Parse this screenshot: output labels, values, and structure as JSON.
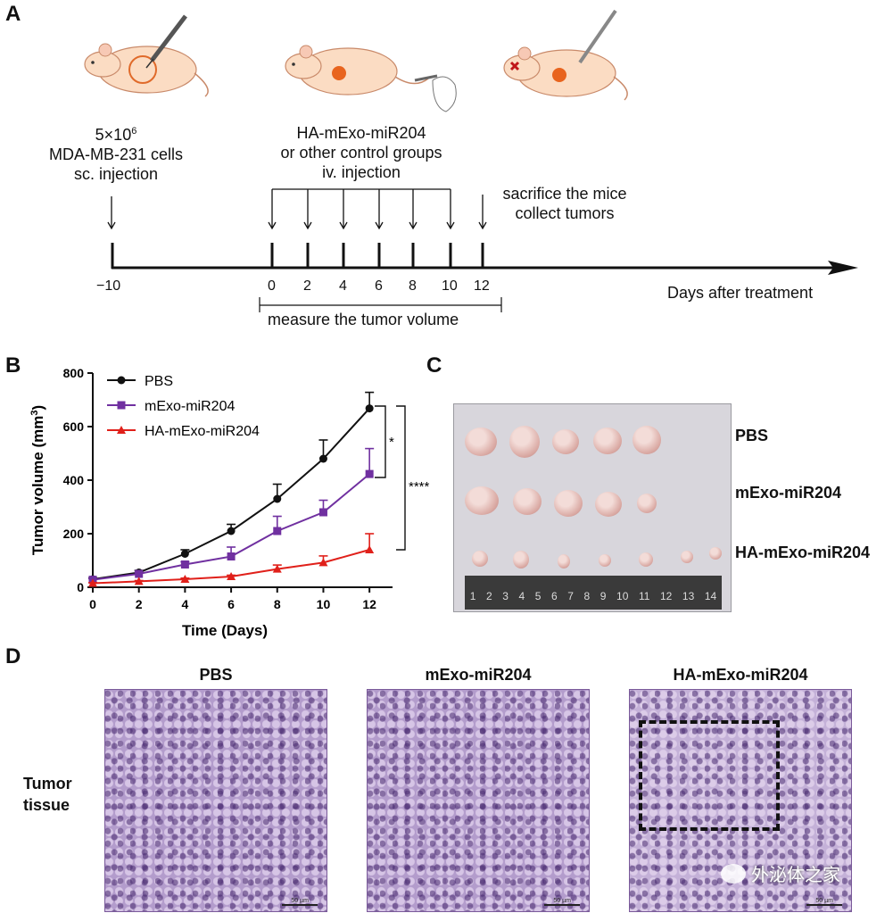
{
  "panels": {
    "a": "A",
    "b": "B",
    "c": "C",
    "d": "D"
  },
  "panel_a": {
    "cells_line1_base": "5×10",
    "cells_line1_sup": "6",
    "cells_line2": "MDA-MB-231 cells",
    "cells_line3": "sc. injection",
    "treat_line1": "HA-mExo-miR204",
    "treat_line2": "or other control groups",
    "treat_line3": "iv. injection",
    "sacrifice_line1": "sacrifice the mice",
    "sacrifice_line2": "collect tumors",
    "ticks": [
      "−10",
      "0",
      "2",
      "4",
      "6",
      "8",
      "10",
      "12"
    ],
    "axis_label": "Days after treatment",
    "measure_label": "measure the tumor volume"
  },
  "chart_data": {
    "type": "line",
    "xlabel": "Time (Days)",
    "ylabel_base": "Tumor volume (mm",
    "ylabel_sup": "3",
    "ylabel_end": ")",
    "x": [
      0,
      2,
      4,
      6,
      8,
      10,
      12
    ],
    "xlim": [
      0,
      13
    ],
    "ylim": [
      0,
      800
    ],
    "xticks": [
      "0",
      "2",
      "4",
      "6",
      "8",
      "10",
      "12"
    ],
    "yticks": [
      "0",
      "200",
      "400",
      "600",
      "800"
    ],
    "series": [
      {
        "name": "PBS",
        "color": "#111111",
        "marker": "circle",
        "values": [
          30,
          55,
          125,
          210,
          330,
          480,
          668
        ],
        "errors": [
          5,
          8,
          15,
          25,
          55,
          70,
          60
        ]
      },
      {
        "name": "mExo-miR204",
        "color": "#7030a0",
        "marker": "square",
        "values": [
          28,
          50,
          85,
          115,
          210,
          280,
          423
        ],
        "errors": [
          4,
          6,
          10,
          35,
          55,
          45,
          95
        ]
      },
      {
        "name": "HA-mExo-miR204",
        "color": "#e0201a",
        "marker": "triangle",
        "values": [
          15,
          22,
          30,
          40,
          68,
          92,
          140
        ],
        "errors": [
          2,
          3,
          4,
          5,
          15,
          25,
          60
        ]
      }
    ],
    "significance": [
      "*",
      "****"
    ],
    "legend": "top-left"
  },
  "panel_c": {
    "rows": [
      "PBS",
      "mExo-miR204",
      "HA-mExo-miR204"
    ],
    "ruler_numbers": [
      "1",
      "2",
      "3",
      "4",
      "5",
      "6",
      "7",
      "8",
      "9",
      "10",
      "11",
      "12",
      "13",
      "14"
    ]
  },
  "panel_d": {
    "titles": [
      "PBS",
      "mExo-miR204",
      "HA-mExo-miR204"
    ],
    "row_label_1": "Tumor",
    "row_label_2": "tissue",
    "scalebar": "50 µm"
  },
  "watermark": "外泌体之家",
  "colors": {
    "pbs": "#111111",
    "mexo": "#7030a0",
    "ha": "#e0201a"
  }
}
